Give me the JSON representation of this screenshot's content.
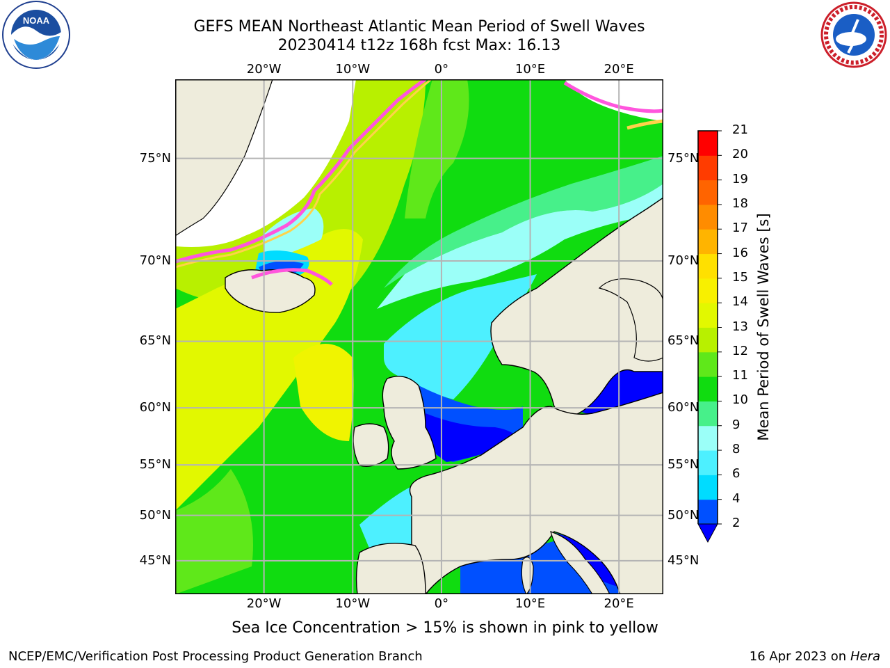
{
  "title": {
    "line1": "GEFS MEAN Northeast Atlantic Mean Period of Swell Waves",
    "line2": "20230414 t12z 168h fcst   Max: 16.13"
  },
  "logos": {
    "left": {
      "icon": "noaa-logo",
      "text": "NOAA"
    },
    "right": {
      "icon": "national-weather-service-logo",
      "text": "NATIONAL WEATHER SERVICE"
    }
  },
  "map": {
    "projection": "Mercator",
    "lon_range": [
      -30,
      25
    ],
    "lat_range": [
      41,
      78
    ],
    "lon_ticks": [
      {
        "value": -20,
        "label": "20°W"
      },
      {
        "value": -10,
        "label": "10°W"
      },
      {
        "value": 0,
        "label": "0°"
      },
      {
        "value": 10,
        "label": "10°E"
      },
      {
        "value": 20,
        "label": "20°E"
      }
    ],
    "lat_ticks": [
      {
        "value": 75,
        "label": "75°N"
      },
      {
        "value": 70,
        "label": "70°N"
      },
      {
        "value": 65,
        "label": "65°N"
      },
      {
        "value": 60,
        "label": "60°N"
      },
      {
        "value": 55,
        "label": "55°N"
      },
      {
        "value": 50,
        "label": "50°N"
      },
      {
        "value": 45,
        "label": "45°N"
      }
    ],
    "colors": {
      "land": "#eeecdc",
      "no_data": "#ffffff",
      "grid": "#b4b4b4",
      "ice_pink": "#ff55dd",
      "ice_yellow": "#ffd24a"
    }
  },
  "colorbar": {
    "label": "Mean Period of Swell Waves [s]",
    "extend": "min",
    "levels": [
      2,
      4,
      6,
      8,
      9,
      10,
      11,
      12,
      13,
      14,
      15,
      16,
      17,
      18,
      19,
      20,
      21
    ],
    "colors": [
      "#0050ff",
      "#00dcff",
      "#4df0ff",
      "#9bfff8",
      "#47f08a",
      "#10dc10",
      "#5fe81a",
      "#b8f000",
      "#e2f800",
      "#f8f000",
      "#ffe000",
      "#ffb400",
      "#ff8c00",
      "#ff6400",
      "#ff3c00",
      "#ff0000"
    ],
    "under_color": "#0000ff",
    "tick_labels": [
      "2",
      "4",
      "6",
      "8",
      "9",
      "10",
      "11",
      "12",
      "13",
      "14",
      "15",
      "16",
      "17",
      "18",
      "19",
      "20",
      "21"
    ]
  },
  "footnote": "Sea Ice Concentration > 15% is shown in pink to yellow",
  "footer": {
    "left": "NCEP/EMC/Verification Post Processing Product Generation Branch",
    "right_prefix": "16 Apr 2023 on ",
    "right_host": "Hera"
  }
}
